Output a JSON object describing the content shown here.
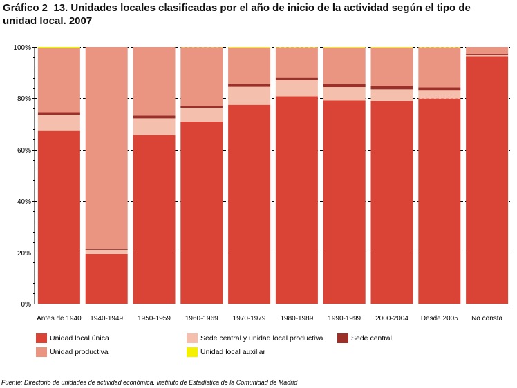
{
  "title": "Gráfico 2_13. Unidades locales clasificadas por el año de inicio de la actividad según el tipo de unidad local. 2007",
  "source": "Fuente: Directorio de unidades de actividad económica. Instituto de Estadística de la Comunidad de Madrid",
  "chart_data": {
    "type": "bar",
    "stacked": true,
    "percent": true,
    "categories": [
      "Antes de 1940",
      "1940-1949",
      "1950-1959",
      "1960-1969",
      "1970-1979",
      "1980-1989",
      "1990-1999",
      "2000-2004",
      "Desde 2005",
      "No consta"
    ],
    "y_ticks": [
      "0%",
      "20%",
      "40%",
      "60%",
      "80%",
      "100%"
    ],
    "ylim": [
      0,
      100
    ],
    "grid": "dashed horizontal lines at 20%, 40%, 60%, 80%, 100%",
    "legend_position": "bottom",
    "series": [
      {
        "name": "Unidad local única",
        "color": "#da4436",
        "values": [
          67.3,
          19.4,
          65.7,
          71.0,
          77.5,
          80.8,
          79.2,
          78.9,
          79.9,
          96.4
        ]
      },
      {
        "name": "Sede central y unidad local productiva",
        "color": "#f4c0ad",
        "values": [
          6.3,
          1.6,
          6.5,
          5.3,
          7.0,
          6.3,
          5.2,
          4.6,
          3.1,
          0.5
        ]
      },
      {
        "name": "Sede central",
        "color": "#9a3028",
        "values": [
          1.0,
          0.3,
          1.1,
          0.7,
          1.0,
          0.9,
          1.3,
          1.4,
          1.3,
          0.4
        ]
      },
      {
        "name": "Unidad productiva",
        "color": "#e99582",
        "values": [
          24.9,
          78.7,
          26.7,
          22.9,
          14.2,
          11.8,
          14.0,
          14.8,
          15.5,
          2.7
        ]
      },
      {
        "name": "Unidad local auxiliar",
        "color": "#f5ef00",
        "values": [
          0.5,
          0.0,
          0.0,
          0.1,
          0.3,
          0.2,
          0.3,
          0.3,
          0.2,
          0.0
        ]
      }
    ]
  }
}
